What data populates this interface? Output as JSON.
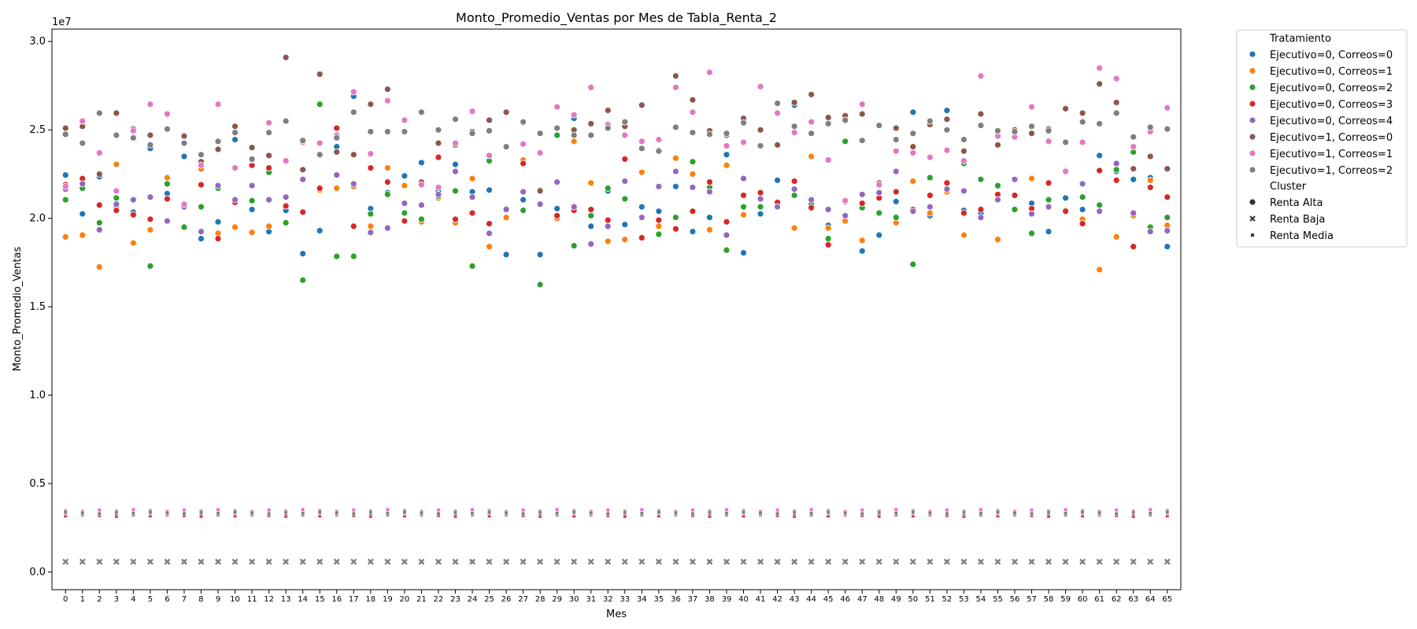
{
  "chart_data": {
    "type": "scatter",
    "title": "Monto_Promedio_Ventas por Mes de Tabla_Renta_2",
    "xlabel": "Mes",
    "ylabel": "Monto_Promedio_Ventas",
    "y_offset_label": "1e7",
    "ylim": [
      -1000000,
      30700000
    ],
    "xlim": [
      -0.8,
      65.8
    ],
    "yticks": [
      0,
      5000000,
      10000000,
      15000000,
      20000000,
      25000000,
      30000000
    ],
    "ytick_labels": [
      "0.0",
      "0.5",
      "1.0",
      "1.5",
      "2.0",
      "2.5",
      "3.0"
    ],
    "x": [
      0,
      1,
      2,
      3,
      4,
      5,
      6,
      7,
      8,
      9,
      10,
      11,
      12,
      13,
      14,
      15,
      16,
      17,
      18,
      19,
      20,
      21,
      22,
      23,
      24,
      25,
      26,
      27,
      28,
      29,
      30,
      31,
      32,
      33,
      34,
      35,
      36,
      37,
      38,
      39,
      40,
      41,
      42,
      43,
      44,
      45,
      46,
      47,
      48,
      49,
      50,
      51,
      52,
      53,
      54,
      55,
      56,
      57,
      58,
      59,
      60,
      61,
      62,
      63,
      64,
      65
    ],
    "grid": false,
    "legend_placement": "outside-right",
    "legend": {
      "hue_title": "Tratamiento",
      "style_title": "Cluster",
      "styles": [
        {
          "name": "Renta Alta",
          "marker": "circle"
        },
        {
          "name": "Renta Baja",
          "marker": "x"
        },
        {
          "name": "Renta Media",
          "marker": "square"
        }
      ]
    },
    "renta_baja_value": 580000,
    "series": [
      {
        "name": "Ejecutivo=0, Correos=0",
        "color": "#1f77b4",
        "renta_media": 3300000,
        "renta_alta": [
          22450000,
          20250000,
          22350000,
          20650000,
          20350000,
          23950000,
          21400000,
          23500000,
          18850000,
          19800000,
          24450000,
          20500000,
          19250000,
          20450000,
          18000000,
          19300000,
          24050000,
          26900000,
          20550000,
          21450000,
          22400000,
          23150000,
          21550000,
          23050000,
          21500000,
          21600000,
          17950000,
          21050000,
          17950000,
          20550000,
          25650000,
          19550000,
          21550000,
          19650000,
          20650000,
          20400000,
          21800000,
          19250000,
          20050000,
          23600000,
          18050000,
          20250000,
          22150000,
          26400000,
          20650000,
          19600000,
          20900000,
          18150000,
          19050000,
          20950000,
          26000000,
          20150000,
          26100000,
          20450000,
          20300000,
          21800000,
          20550000,
          20850000,
          19250000,
          21150000,
          20500000,
          23550000,
          22650000,
          22200000,
          22300000,
          18400000
        ]
      },
      {
        "name": "Ejecutivo=0, Correos=1",
        "color": "#ff7f0e",
        "renta_media": 3250000,
        "renta_alta": [
          18950000,
          19050000,
          17250000,
          23050000,
          18600000,
          19350000,
          22300000,
          19500000,
          22800000,
          19150000,
          19500000,
          19200000,
          19550000,
          20700000,
          20350000,
          21600000,
          21700000,
          21800000,
          19550000,
          22850000,
          21850000,
          19800000,
          21150000,
          19750000,
          22250000,
          18400000,
          20050000,
          23300000,
          21550000,
          20000000,
          24350000,
          22000000,
          18700000,
          18800000,
          22600000,
          19550000,
          23400000,
          22500000,
          19350000,
          23000000,
          20200000,
          20650000,
          20950000,
          19450000,
          23500000,
          19450000,
          19850000,
          18750000,
          20350000,
          19750000,
          22100000,
          20300000,
          21500000,
          19050000,
          20550000,
          18800000,
          20500000,
          22250000,
          21000000,
          22650000,
          19950000,
          17100000,
          18950000,
          20150000,
          22150000,
          19600000
        ]
      },
      {
        "name": "Ejecutivo=0, Correos=2",
        "color": "#2ca02c",
        "renta_media": 3320000,
        "renta_alta": [
          21050000,
          21700000,
          19750000,
          21150000,
          20200000,
          17300000,
          21950000,
          19500000,
          20650000,
          21700000,
          20900000,
          21000000,
          22600000,
          19750000,
          16500000,
          26450000,
          17850000,
          17850000,
          20250000,
          21350000,
          20300000,
          19950000,
          21250000,
          21550000,
          17300000,
          23250000,
          20550000,
          20450000,
          16250000,
          24700000,
          18450000,
          20150000,
          21700000,
          21100000,
          18900000,
          19100000,
          20050000,
          23200000,
          21750000,
          18200000,
          20650000,
          20650000,
          20850000,
          21300000,
          20800000,
          18850000,
          24350000,
          20600000,
          20300000,
          20050000,
          17400000,
          22300000,
          21700000,
          23100000,
          22200000,
          21850000,
          20500000,
          19150000,
          21050000,
          20450000,
          21200000,
          20750000,
          22750000,
          23750000,
          19500000,
          20050000
        ]
      },
      {
        "name": "Ejecutivo=0, Correos=3",
        "color": "#d62728",
        "renta_media": 3200000,
        "renta_alta": [
          21900000,
          22250000,
          20750000,
          20450000,
          20200000,
          19950000,
          21100000,
          20700000,
          21900000,
          18850000,
          20900000,
          23000000,
          22850000,
          20700000,
          20350000,
          21700000,
          25100000,
          19550000,
          22850000,
          22050000,
          19850000,
          22050000,
          23450000,
          19950000,
          20300000,
          19700000,
          20550000,
          23100000,
          21600000,
          20150000,
          20450000,
          20500000,
          19900000,
          23350000,
          18900000,
          19900000,
          19400000,
          20400000,
          22050000,
          19800000,
          21300000,
          21450000,
          20900000,
          22100000,
          20600000,
          18500000,
          20950000,
          20850000,
          21150000,
          21500000,
          20500000,
          21300000,
          22000000,
          20300000,
          20500000,
          21350000,
          21300000,
          20550000,
          22000000,
          20400000,
          19700000,
          22700000,
          22150000,
          18400000,
          21750000,
          21200000
        ]
      },
      {
        "name": "Ejecutivo=0, Correos=4",
        "color": "#9467bd",
        "renta_media": 3280000,
        "renta_alta": [
          21650000,
          21950000,
          19350000,
          20800000,
          21050000,
          21200000,
          19850000,
          20650000,
          19250000,
          21850000,
          21050000,
          21850000,
          21050000,
          21200000,
          22200000,
          23600000,
          22450000,
          21950000,
          19200000,
          19450000,
          20850000,
          20750000,
          21350000,
          22650000,
          21200000,
          19150000,
          20500000,
          21500000,
          20800000,
          22050000,
          20650000,
          18550000,
          19550000,
          22100000,
          20050000,
          21800000,
          22650000,
          21750000,
          21500000,
          19050000,
          22250000,
          21100000,
          20650000,
          21650000,
          21050000,
          20500000,
          20150000,
          21350000,
          21450000,
          22650000,
          20400000,
          20650000,
          21650000,
          21550000,
          20050000,
          21050000,
          22200000,
          20250000,
          20650000,
          22700000,
          21950000,
          20400000,
          23100000,
          20300000,
          19250000,
          19300000
        ]
      },
      {
        "name": "Ejecutivo=1, Correos=0",
        "color": "#8c564b",
        "renta_media": 3400000,
        "renta_alta": [
          25100000,
          25200000,
          22500000,
          25950000,
          25050000,
          24700000,
          25850000,
          24650000,
          23200000,
          23900000,
          25200000,
          24000000,
          23550000,
          29100000,
          22750000,
          28150000,
          23750000,
          23600000,
          26450000,
          27300000,
          25550000,
          22050000,
          24250000,
          24150000,
          24900000,
          25550000,
          26000000,
          25400000,
          21550000,
          25100000,
          25000000,
          25350000,
          26100000,
          25200000,
          26400000,
          23850000,
          28050000,
          26700000,
          24950000,
          24700000,
          25650000,
          25000000,
          24150000,
          26550000,
          27000000,
          25700000,
          25800000,
          25900000,
          22000000,
          25100000,
          24050000,
          25300000,
          25600000,
          23800000,
          25900000,
          24150000,
          25000000,
          24800000,
          25050000,
          26200000,
          25950000,
          27600000,
          26550000,
          22800000,
          23500000,
          22800000
        ]
      },
      {
        "name": "Ejecutivo=1, Correos=1",
        "color": "#e377c2",
        "renta_media": 3480000,
        "renta_alta": [
          21800000,
          25500000,
          23700000,
          21550000,
          24950000,
          26450000,
          25900000,
          20800000,
          23000000,
          26450000,
          22850000,
          23300000,
          25400000,
          23250000,
          24300000,
          24250000,
          24700000,
          27150000,
          23650000,
          26650000,
          25550000,
          21900000,
          21750000,
          24250000,
          26050000,
          23550000,
          24000000,
          24200000,
          23700000,
          26300000,
          25850000,
          27400000,
          25300000,
          24700000,
          24350000,
          24450000,
          27400000,
          26000000,
          28250000,
          24100000,
          24300000,
          27450000,
          25950000,
          24850000,
          25450000,
          23300000,
          21000000,
          26450000,
          21900000,
          23800000,
          23700000,
          23450000,
          23850000,
          23250000,
          28050000,
          24650000,
          24600000,
          26300000,
          24350000,
          22650000,
          24300000,
          28500000,
          27900000,
          24050000,
          24900000,
          26250000
        ]
      },
      {
        "name": "Ejecutivo=1, Correos=2",
        "color": "#7f7f7f",
        "renta_media": 3350000,
        "renta_alta": [
          24750000,
          24250000,
          25950000,
          24700000,
          24550000,
          24150000,
          25050000,
          24250000,
          23600000,
          24350000,
          24850000,
          23350000,
          24850000,
          25500000,
          24400000,
          23600000,
          24550000,
          26000000,
          24900000,
          24900000,
          24900000,
          26000000,
          25000000,
          25600000,
          24800000,
          24950000,
          24050000,
          25450000,
          24800000,
          25100000,
          24700000,
          24700000,
          25100000,
          25450000,
          23950000,
          23800000,
          25150000,
          24850000,
          24750000,
          24800000,
          25400000,
          24100000,
          26500000,
          25200000,
          24800000,
          25350000,
          25550000,
          24400000,
          25250000,
          24450000,
          24800000,
          25500000,
          25000000,
          24450000,
          25250000,
          24950000,
          24900000,
          25200000,
          24950000,
          24300000,
          25450000,
          25350000,
          25950000,
          24600000,
          25150000,
          25050000
        ]
      }
    ]
  }
}
